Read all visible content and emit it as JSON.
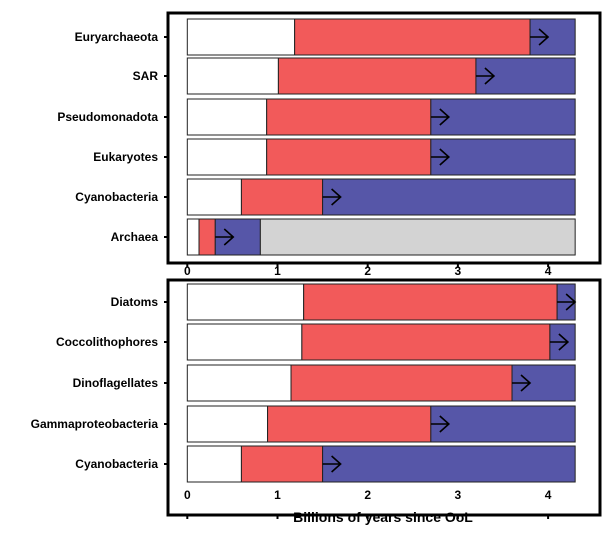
{
  "chart_data": [
    {
      "type": "bar",
      "orientation": "horizontal",
      "stacked": true,
      "categories": [
        "Euryarchaeota",
        "SAR",
        "Pseudomonadota",
        "Eukaryotes",
        "Cyanobacteria",
        "Archaea"
      ],
      "segments": [
        {
          "category": "Euryarchaeota",
          "bounds": [
            0,
            1.19,
            3.8,
            4.3
          ]
        },
        {
          "category": "SAR",
          "bounds": [
            0,
            1.01,
            3.2,
            4.3
          ]
        },
        {
          "category": "Pseudomonadota",
          "bounds": [
            0,
            0.88,
            2.7,
            4.3
          ]
        },
        {
          "category": "Eukaryotes",
          "bounds": [
            0,
            0.88,
            2.7,
            4.3
          ]
        },
        {
          "category": "Cyanobacteria",
          "bounds": [
            0,
            0.6,
            1.5,
            4.3
          ]
        },
        {
          "category": "Archaea",
          "bounds": [
            0,
            0.13,
            0.31,
            0.81,
            4.3
          ]
        }
      ],
      "xticks": [
        "0",
        "1",
        "2",
        "3",
        "4"
      ],
      "xlim": [
        0,
        4.3
      ],
      "xlabel": ""
    },
    {
      "type": "bar",
      "orientation": "horizontal",
      "stacked": true,
      "categories": [
        "Diatoms",
        "Coccolithophores",
        "Dinoflagellates",
        "Gammaproteobacteria",
        "Cyanobacteria"
      ],
      "segments": [
        {
          "category": "Diatoms",
          "bounds": [
            0,
            1.29,
            4.1,
            4.3
          ]
        },
        {
          "category": "Coccolithophores",
          "bounds": [
            0,
            1.27,
            4.02,
            4.3
          ]
        },
        {
          "category": "Dinoflagellates",
          "bounds": [
            0,
            1.15,
            3.6,
            4.3
          ]
        },
        {
          "category": "Gammaproteobacteria",
          "bounds": [
            0,
            0.89,
            2.7,
            4.3
          ]
        },
        {
          "category": "Cyanobacteria",
          "bounds": [
            0,
            0.6,
            1.5,
            4.3
          ]
        }
      ],
      "xticks": [
        "0",
        "1",
        "2",
        "3",
        "4"
      ],
      "xlim": [
        0,
        4.3
      ],
      "xlabel": "Billions of years since OoL"
    }
  ],
  "colors": [
    "#ffffff",
    "#f25a5a",
    "#5656a8",
    "#d3d3d3"
  ]
}
